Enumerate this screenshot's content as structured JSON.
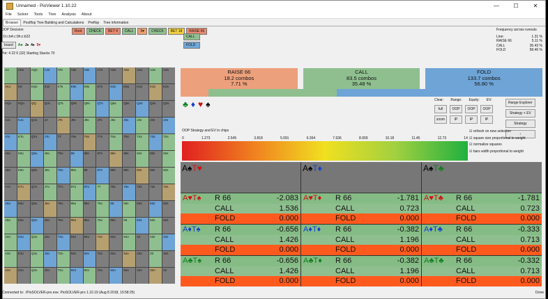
{
  "window": {
    "title": "Unnamed - PioViewer 1.10.22",
    "minimize": "—",
    "maximize": "☐",
    "close": "✕"
  },
  "menu": [
    "File",
    "Solver",
    "Tools",
    "Tree",
    "Analysis",
    "About"
  ],
  "tabs": [
    "Browser",
    "Postflop Tree Building and Calculations",
    "Preflop",
    "Tree information"
  ],
  "left_header": {
    "decision": "OOP Decision",
    "board_line": "r:0:c:b4:c:9h:c:b22",
    "board_btn": "board",
    "cards": [
      {
        "rank": "A",
        "suit": "♣",
        "color": "green"
      },
      {
        "rank": "J",
        "suit": "♠",
        "color": "black"
      },
      {
        "rank": "4",
        "suit": "♠",
        "color": "black"
      },
      {
        "rank": "5",
        "suit": "♥",
        "color": "red"
      }
    ],
    "pot": "Pot: 4 22 6 (32) Starting Stacks 70"
  },
  "nav": [
    {
      "label": "Root",
      "color": "#e88a70"
    },
    {
      "label": "CHECK",
      "color": "#90bf90"
    },
    {
      "label": "BET 4",
      "color": "#e88a70"
    },
    {
      "label": "CALL",
      "color": "#90bf90"
    },
    {
      "label": "9♥",
      "color": "#e8a070"
    },
    {
      "label": "CHECK",
      "color": "#90bf90"
    },
    {
      "label": "BET 18",
      "color": "#f0d040"
    },
    {
      "label": "RAISE 66",
      "color": "#e88a70"
    }
  ],
  "options": [
    {
      "label": "CALL",
      "color": "#90bf90"
    },
    {
      "label": "FOLD",
      "color": "#70a8d8"
    }
  ],
  "frequency": {
    "title": "Frequency across runouts",
    "rows": [
      {
        "k": "Line:",
        "v": "1.31 %"
      },
      {
        "k": "RAISE 66",
        "v": "5.11 %"
      },
      {
        "k": "CALL",
        "v": "36.43 %"
      },
      {
        "k": "FOLD",
        "v": "58.46 %"
      }
    ]
  },
  "actions": [
    {
      "name": "RAISE 66",
      "combos": "18.2 combos",
      "pct": "7.71 %",
      "color": "#eda07c"
    },
    {
      "name": "CALL",
      "combos": "83.5 combos",
      "pct": "35.48 %",
      "color": "#8fbf8f"
    },
    {
      "name": "FOLD",
      "combos": "133.7 combos",
      "pct": "56.80 %",
      "color": "#6ea4d6"
    }
  ],
  "suit_selector": [
    {
      "s": "♣",
      "color": "green"
    },
    {
      "s": "♦",
      "color": "blue"
    },
    {
      "s": "♥",
      "color": "red"
    },
    {
      "s": "♠",
      "color": "black"
    }
  ],
  "strategy_label": "OOP Strategy and EV in chips",
  "scale": [
    "0",
    "1.273",
    "2.545",
    "3.818",
    "5.091",
    "6.364",
    "7.636",
    "8.909",
    "10.18",
    "11.45",
    "12.73",
    "14"
  ],
  "controls": {
    "labels": [
      "Clear:",
      "Range:",
      "Equity:",
      "EV:"
    ],
    "row1": [
      "full",
      "OOP",
      "OOP",
      "OOP"
    ],
    "row2": [
      "zoom",
      "IP",
      "IP",
      "IP"
    ],
    "right": [
      "Range Explorer",
      "Strategy + EV",
      "Strategy",
      "‹"
    ]
  },
  "checkboxes": [
    "refresh on new selection",
    "square size proportional to weight",
    "normalize squares",
    "bars width proportional to weight"
  ],
  "combos_header": [
    {
      "c1": "A",
      "s1": "♠",
      "c1c": "black",
      "c2": "T",
      "s2": "♥",
      "c2c": "red"
    },
    {
      "c1": "A",
      "s1": "♠",
      "c1c": "black",
      "c2": "T",
      "s2": "♦",
      "c2c": "blue"
    },
    {
      "c1": "A",
      "s1": "♠",
      "c1c": "black",
      "c2": "T",
      "s2": "♣",
      "c2c": "green"
    }
  ],
  "combos": [
    {
      "hand": "A♥T♠",
      "rc": "red",
      "raise": "-2.083",
      "call": "1.536",
      "fold": "0.000"
    },
    {
      "hand": "A♥T♦",
      "rc": "red",
      "raise": "-1.781",
      "call": "0.723",
      "fold": "0.000"
    },
    {
      "hand": "A♥T♣",
      "rc": "red",
      "raise": "-1.781",
      "call": "0.723",
      "fold": "0.000"
    },
    {
      "hand": "A♦T♠",
      "rc": "blue",
      "raise": "-0.656",
      "call": "1.426",
      "fold": "0.000"
    },
    {
      "hand": "A♦T♦",
      "rc": "blue",
      "raise": "-0.382",
      "call": "1.196",
      "fold": "0.000"
    },
    {
      "hand": "A♦T♣",
      "rc": "blue",
      "raise": "-0.333",
      "call": "0.713",
      "fold": "0.000"
    },
    {
      "hand": "A♣T♠",
      "rc": "green",
      "raise": "-0.656",
      "call": "1.426",
      "fold": "0.000"
    },
    {
      "hand": "A♣T♦",
      "rc": "green",
      "raise": "-0.382",
      "call": "1.196",
      "fold": "0.000"
    },
    {
      "hand": "A♣T♣",
      "rc": "green",
      "raise": "-0.332",
      "call": "0.713",
      "fold": "0.000"
    }
  ],
  "action_labels": {
    "raise": "R 66",
    "call": "CALL",
    "fold": "FOLD"
  },
  "status": "Connected to: .\\PioSOLVER-pro.exe. PioSOLVER-pro 1.10.19 (Aug 8 2018, 10:58:25)",
  "done": "Done"
}
